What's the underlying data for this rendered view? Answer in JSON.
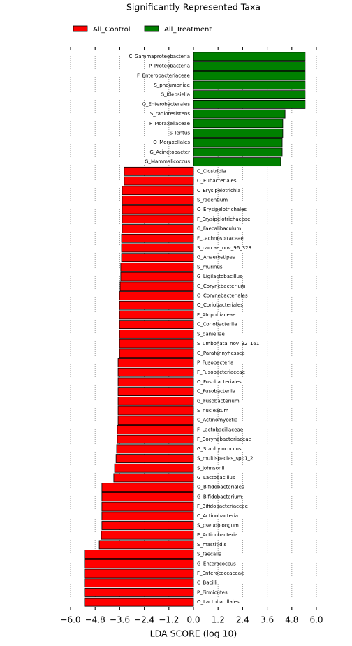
{
  "chart_data": {
    "type": "barh",
    "title": "Significantly Represented Taxa",
    "xlabel": "LDA SCORE (log 10)",
    "categories": [
      "C_Gammaproteobacteria",
      "P_Proteobacteria",
      "F_Enterobacteriaceae",
      "S_pneumoniae",
      "G_Klebsiella",
      "O_Enterobacterales",
      "S_radioresistens",
      "F_Moraxellaceae",
      "S_lentus",
      "O_Moraxellales",
      "G_Acinetobacter",
      "G_Mammalicoccus",
      "C_Clostridia",
      "O_Eubacteriales",
      "C_Erysipelotrichia",
      "S_rodentium",
      "O_Erysipelotrichales",
      "F_Erysipelotrichaceae",
      "G_Faecalibaculum",
      "F_Lachnospiraceae",
      "S_caccae_nov_96_328",
      "G_Anaerostipes",
      "S_murinus",
      "G_Ligilactobacillus",
      "G_Corynebacterium",
      "O_Corynebacteriales",
      "O_Coriobacteriales",
      "F_Atopobiaceae",
      "C_Coriobacteriia",
      "S_danieliae",
      "S_umbonata_nov_92_161",
      "G_Parafannyhessea",
      "P_Fusobacteria",
      "F_Fusobacteriaceae",
      "O_Fusobacteriales",
      "C_Fusobacteriia",
      "G_Fusobacterium",
      "S_nucleatum",
      "C_Actinomycetia",
      "F_Lactobacillaceae",
      "F_Corynebacteriaceae",
      "G_Staphylococcus",
      "S_multispecies_spp1_2",
      "S_johnsonii",
      "G_Lactobacillus",
      "O_Bifidobacteriales",
      "G_Bifidobacterium",
      "F_Bifidobacteriaceae",
      "C_Actinobacteria",
      "S_pseudolongum",
      "P_Actinobacteria",
      "S_mastitidis",
      "S_faecalis",
      "G_Enterococcus",
      "F_Enterococcaceae",
      "C_Bacilli",
      "P_Firmicutes",
      "O_Lactobacillales"
    ],
    "series": [
      {
        "name": "All_Control",
        "color": "#ff0000",
        "values": [
          null,
          null,
          null,
          null,
          null,
          null,
          null,
          null,
          null,
          null,
          null,
          null,
          -3.38,
          -3.38,
          -3.48,
          -3.48,
          -3.48,
          -3.48,
          -3.48,
          -3.51,
          -3.51,
          -3.51,
          -3.55,
          -3.55,
          -3.58,
          -3.61,
          -3.61,
          -3.61,
          -3.61,
          -3.61,
          -3.61,
          -3.61,
          -3.68,
          -3.68,
          -3.68,
          -3.68,
          -3.68,
          -3.68,
          -3.68,
          -3.72,
          -3.72,
          -3.75,
          -3.78,
          -3.85,
          -3.89,
          -4.47,
          -4.47,
          -4.47,
          -4.47,
          -4.47,
          -4.5,
          -4.6,
          -5.32,
          -5.32,
          -5.32,
          -5.32,
          -5.32,
          -5.32
        ]
      },
      {
        "name": "All_Treatment",
        "color": "#008000",
        "values": [
          5.45,
          5.45,
          5.45,
          5.45,
          5.45,
          5.45,
          4.47,
          4.36,
          4.36,
          4.33,
          4.33,
          4.26,
          null,
          null,
          null,
          null,
          null,
          null,
          null,
          null,
          null,
          null,
          null,
          null,
          null,
          null,
          null,
          null,
          null,
          null,
          null,
          null,
          null,
          null,
          null,
          null,
          null,
          null,
          null,
          null,
          null,
          null,
          null,
          null,
          null,
          null,
          null,
          null,
          null,
          null,
          null,
          null,
          null,
          null,
          null,
          null,
          null,
          null
        ]
      }
    ],
    "xlim": [
      -6.0,
      6.0
    ],
    "xticks": [
      {
        "value": -6.0,
        "label": "−6.0"
      },
      {
        "value": -4.8,
        "label": "−4.8"
      },
      {
        "value": -3.6,
        "label": "−3.6"
      },
      {
        "value": -2.4,
        "label": "−2.4"
      },
      {
        "value": -1.2,
        "label": "−1.2"
      },
      {
        "value": 0,
        "label": "0.0"
      },
      1.2,
      2.4,
      3.6,
      4.8,
      {
        "value": 6.0,
        "label": "6.0"
      }
    ],
    "grid": true,
    "legend": "top"
  }
}
